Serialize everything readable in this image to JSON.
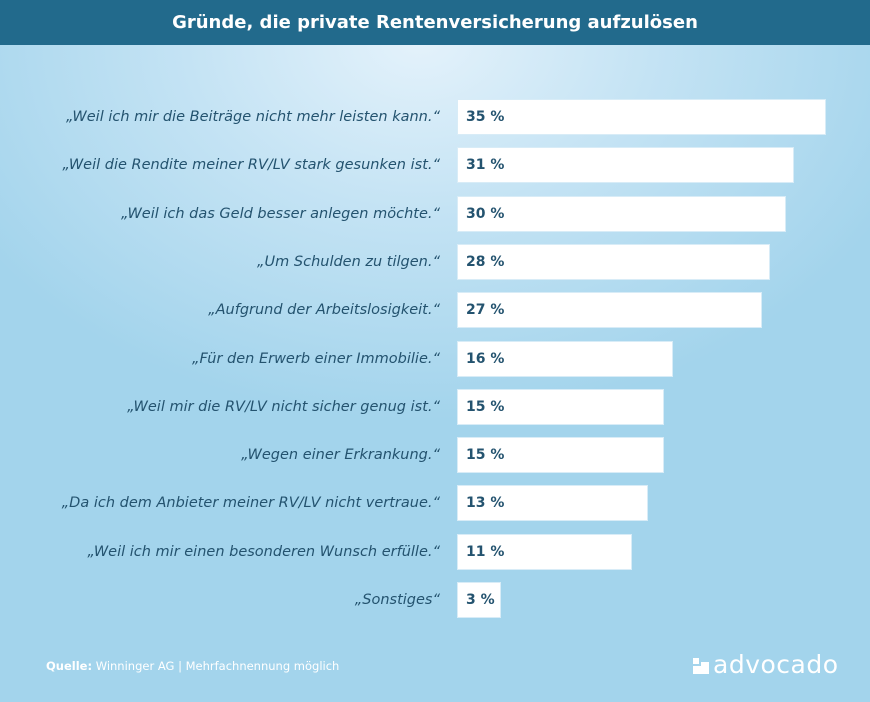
{
  "chart_data": {
    "type": "bar",
    "orientation": "horizontal",
    "title": "Gründe, die private Rentenversicherung aufzulösen",
    "categories": [
      "„Weil ich mir die Beiträge nicht mehr leisten kann.“",
      "„Weil die Rendite meiner RV/LV stark gesunken ist.“",
      "„Weil ich das Geld besser anlegen möchte.“",
      "„Um Schulden zu tilgen.“",
      "„Aufgrund der Arbeitslosigkeit.“",
      "„Für den Erwerb einer Immobilie.“",
      "„Weil mir die RV/LV nicht sicher genug ist.“",
      "„Wegen einer Erkrankung.“",
      "„Da ich dem Anbieter meiner RV/LV nicht vertraue.“",
      "„Weil ich mir einen besonderen Wunsch erfülle.“",
      "„Sonstiges“"
    ],
    "values": [
      35,
      31,
      30,
      28,
      27,
      16,
      15,
      15,
      13,
      11,
      3
    ],
    "value_labels": [
      "35 %",
      "31 %",
      "30 %",
      "28 %",
      "27 %",
      "16 %",
      "15 %",
      "15 %",
      "13 %",
      "11 %",
      "3 %"
    ],
    "unit": "%",
    "grid": false,
    "colors": {
      "bar": "#ffffff",
      "header": "#226a8c",
      "text": "#24536f"
    }
  },
  "footer": {
    "source_label": "Quelle:",
    "source_text": "Winninger AG | Mehrfachnennung möglich"
  },
  "logo": {
    "text": "advocado"
  }
}
